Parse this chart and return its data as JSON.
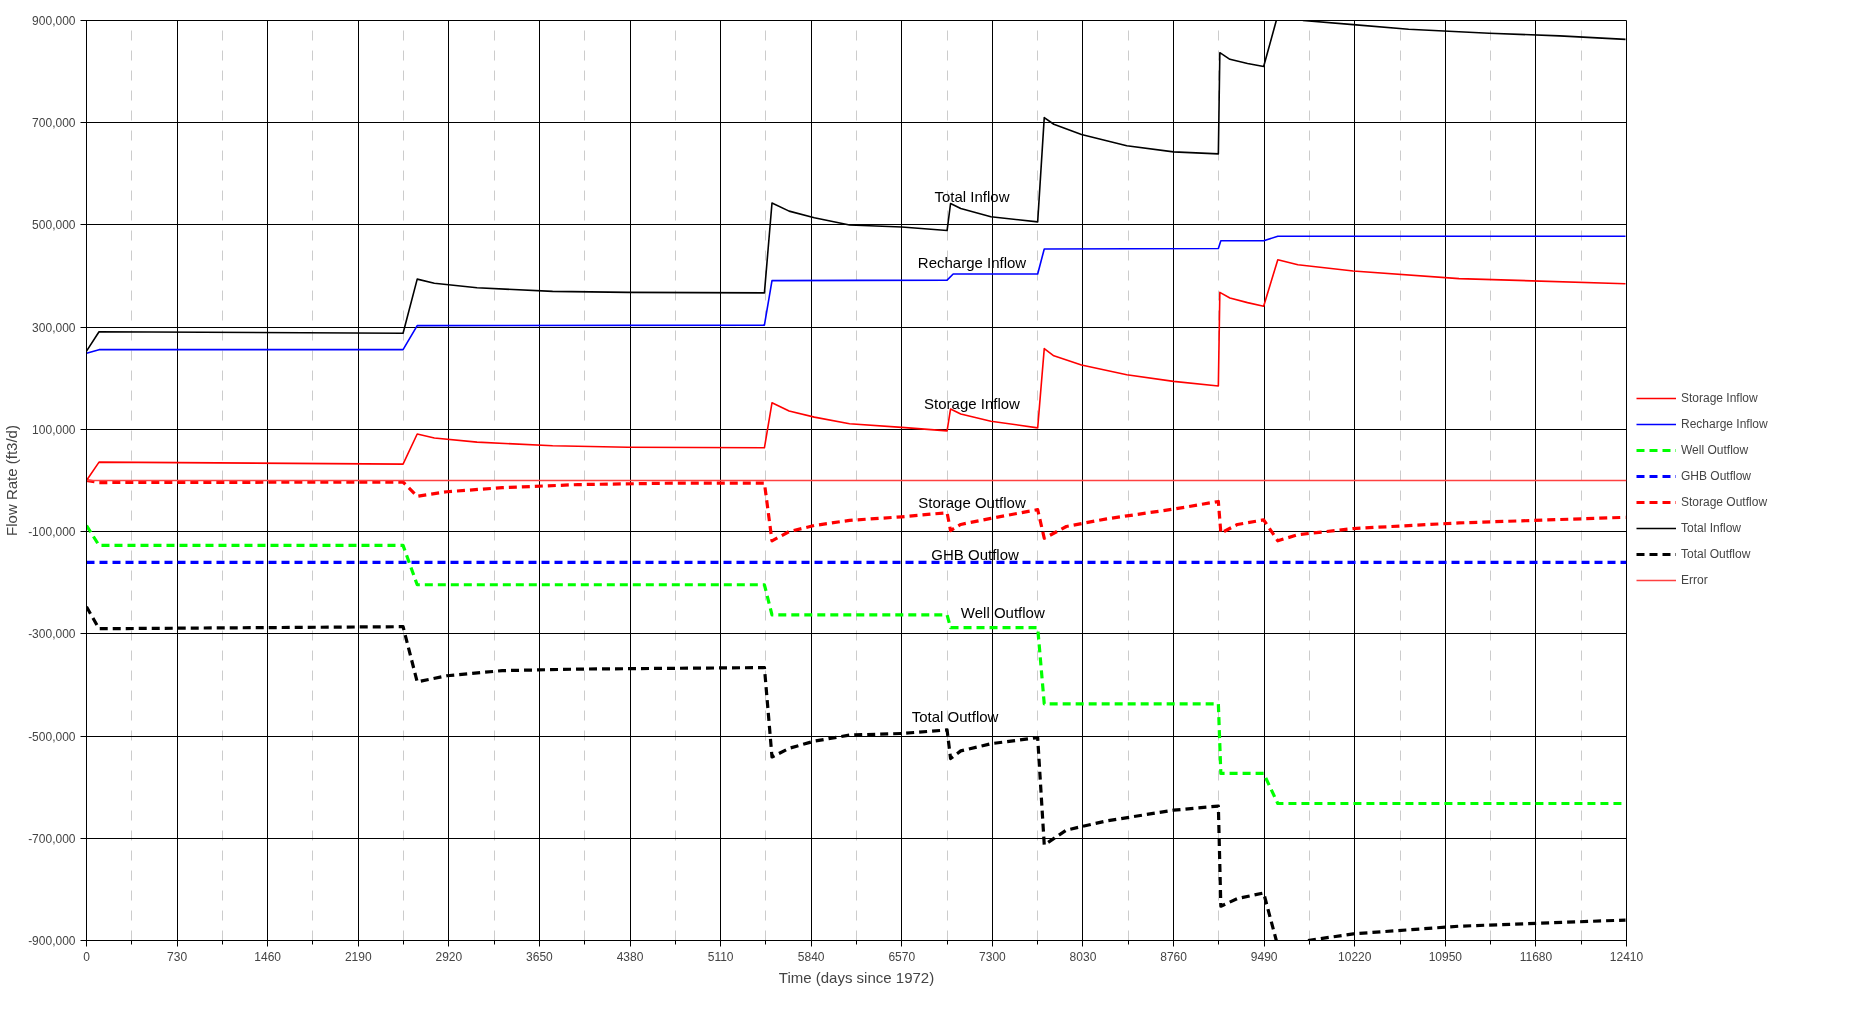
{
  "chart_data": {
    "type": "line",
    "xlabel": "Time (days since 1972)",
    "ylabel": "Flow Rate (ft3/d)",
    "xlim": [
      0,
      12410
    ],
    "xticks": [
      0,
      730,
      1460,
      2190,
      2920,
      3650,
      4380,
      5110,
      5840,
      6570,
      7300,
      8030,
      8760,
      9490,
      10220,
      10950,
      11680,
      12410
    ],
    "ylim": [
      -900000,
      900000
    ],
    "yticks": [
      {
        "value": 900000,
        "label": "900,000"
      },
      {
        "value": 700000,
        "label": "700,000"
      },
      {
        "value": 500000,
        "label": "500,000"
      },
      {
        "value": 300000,
        "label": "300,000"
      },
      {
        "value": 100000,
        "label": "100,000"
      },
      {
        "value": -100000,
        "label": "-100,000"
      },
      {
        "value": -300000,
        "label": "-300,000"
      },
      {
        "value": -500000,
        "label": "-500,000"
      },
      {
        "value": -700000,
        "label": "-700,000"
      },
      {
        "value": -900000,
        "label": "-900,000"
      }
    ],
    "grid": true,
    "legend": "right",
    "marker": "none",
    "series": [
      {
        "name": "Storage Inflow",
        "color": "#ff0000",
        "line_style": "solid",
        "x": [
          0,
          101,
          2551,
          2665,
          2803,
          3147,
          3756,
          4364,
          5463,
          5524,
          5662,
          5865,
          6149,
          6570,
          6935,
          6963,
          7045,
          7288,
          7665,
          7718,
          7795,
          8018,
          8383,
          8760,
          9121,
          9133,
          9214,
          9356,
          9486,
          9600,
          9762,
          10208,
          11060,
          12402
        ],
        "values": [
          0,
          36000,
          32000,
          91000,
          83000,
          75000,
          68000,
          65000,
          64000,
          152000,
          136000,
          124000,
          111000,
          104000,
          97000,
          140000,
          130000,
          116000,
          103000,
          258000,
          244000,
          226000,
          207000,
          194000,
          185000,
          368000,
          357000,
          348000,
          341000,
          432000,
          422000,
          410000,
          395000,
          385000
        ]
      },
      {
        "name": "Recharge Inflow",
        "color": "#0000ff",
        "line_style": "solid",
        "x": [
          0,
          101,
          2551,
          2665,
          5463,
          5524,
          6935,
          6984,
          7665,
          7718,
          9121,
          9141,
          9486,
          9600,
          12402
        ],
        "values": [
          249000,
          256000,
          256000,
          303000,
          304000,
          391000,
          392000,
          404000,
          404000,
          453000,
          454000,
          469000,
          469000,
          478000,
          478000
        ]
      },
      {
        "name": "Well Outflow",
        "color": "#00ff00",
        "line_style": "dashed",
        "x": [
          0,
          101,
          2551,
          2665,
          5463,
          5524,
          6935,
          6963,
          7665,
          7718,
          9121,
          9141,
          9486,
          9600,
          12402
        ],
        "values": [
          -88000,
          -127000,
          -127000,
          -204000,
          -204000,
          -263000,
          -263000,
          -288000,
          -288000,
          -437000,
          -437000,
          -573000,
          -573000,
          -632000,
          -632000
        ]
      },
      {
        "name": "GHB Outflow",
        "color": "#0000ff",
        "line_style": "dashed",
        "x": [
          0,
          12410
        ],
        "values": [
          -160000,
          -160000
        ]
      },
      {
        "name": "Storage Outflow",
        "color": "#ff0000",
        "line_style": "dashed",
        "x": [
          0,
          101,
          2551,
          2665,
          2904,
          3350,
          3959,
          4770,
          5463,
          5524,
          5662,
          5865,
          6149,
          6570,
          6935,
          6963,
          7045,
          7288,
          7665,
          7718,
          7896,
          8221,
          8760,
          9121,
          9141,
          9275,
          9486,
          9600,
          9762,
          10208,
          11060,
          12402
        ],
        "values": [
          0,
          -4000,
          -3000,
          -31000,
          -22000,
          -14000,
          -8000,
          -5000,
          -5000,
          -118000,
          -100000,
          -88000,
          -78000,
          -71000,
          -63000,
          -98000,
          -86000,
          -74000,
          -57000,
          -113000,
          -90000,
          -75000,
          -56000,
          -41000,
          -103000,
          -86000,
          -77000,
          -118000,
          -106000,
          -94000,
          -83000,
          -72000
        ]
      },
      {
        "name": "Total Inflow",
        "color": "#000000",
        "line_style": "solid",
        "x": [
          0,
          101,
          2551,
          2665,
          2803,
          3147,
          3756,
          4364,
          5463,
          5524,
          5662,
          5865,
          6149,
          6570,
          6935,
          6963,
          7045,
          7288,
          7665,
          7718,
          7795,
          8018,
          8383,
          8760,
          9121,
          9133,
          9214,
          9356,
          9486,
          9588,
          9700,
          9802,
          10208,
          10654,
          11303,
          11871,
          12402
        ],
        "values": [
          253000,
          291000,
          288000,
          394000,
          386000,
          377000,
          370000,
          368000,
          367000,
          543000,
          527000,
          514000,
          500000,
          496000,
          489000,
          542000,
          532000,
          516000,
          506000,
          710000,
          697000,
          677000,
          655000,
          643000,
          639000,
          837000,
          824000,
          816000,
          810000,
          900000,
          null,
          900000,
          892000,
          883000,
          875000,
          870000,
          863000
        ]
      },
      {
        "name": "Total Outflow",
        "color": "#000000",
        "line_style": "dashed",
        "x": [
          0,
          101,
          2551,
          2665,
          2904,
          3350,
          3959,
          5463,
          5524,
          5662,
          5865,
          6149,
          6570,
          6935,
          6963,
          7045,
          7288,
          7665,
          7718,
          7896,
          8221,
          8760,
          9121,
          9141,
          9275,
          9486,
          9588,
          9700,
          9843,
          10208,
          11060,
          12402
        ],
        "values": [
          -247000,
          -290000,
          -286000,
          -394000,
          -382000,
          -372000,
          -369000,
          -366000,
          -541000,
          -524000,
          -510000,
          -498000,
          -495000,
          -488000,
          -544000,
          -529000,
          -515000,
          -503000,
          -713000,
          -684000,
          -666000,
          -645000,
          -637000,
          -833000,
          -818000,
          -807000,
          -900000,
          null,
          -900000,
          -887000,
          -872000,
          -860000
        ]
      },
      {
        "name": "Error",
        "color": "#ff4040",
        "line_style": "solid",
        "x": [
          0,
          12410
        ],
        "values": [
          0,
          0
        ]
      }
    ],
    "annotations": [
      "Total Inflow",
      "Recharge Inflow",
      "Storage Inflow",
      "Storage Outflow",
      "GHB Outflow",
      "Well Outflow",
      "Total Outflow"
    ]
  }
}
